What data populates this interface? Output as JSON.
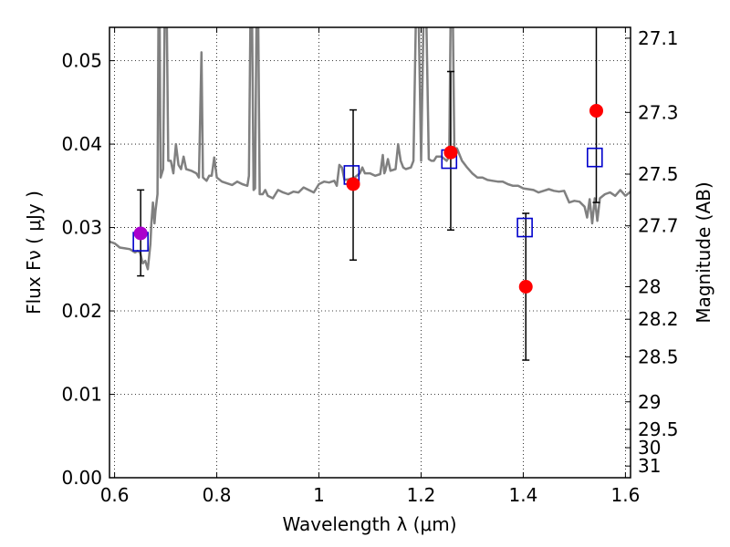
{
  "chart_data": {
    "type": "scatter",
    "title": "",
    "xlabel": "Wavelength  λ (μm)",
    "ylabel": "Flux  Fν  ( μJy )",
    "ylabel_right": "Magnitude (AB)",
    "xlim": [
      0.59,
      1.61
    ],
    "ylim": [
      0.0,
      0.054
    ],
    "grid": true,
    "x_ticks": [
      {
        "value": 0.6,
        "label": "0.6"
      },
      {
        "value": 0.8,
        "label": "0.8"
      },
      {
        "value": 1.0,
        "label": "1"
      },
      {
        "value": 1.2,
        "label": "1.2"
      },
      {
        "value": 1.4,
        "label": "1.4"
      },
      {
        "value": 1.6,
        "label": "1.6"
      }
    ],
    "y_ticks": [
      {
        "value": 0.0,
        "label": "0.00"
      },
      {
        "value": 0.01,
        "label": "0.01"
      },
      {
        "value": 0.02,
        "label": "0.02"
      },
      {
        "value": 0.03,
        "label": "0.03"
      },
      {
        "value": 0.04,
        "label": "0.04"
      },
      {
        "value": 0.05,
        "label": "0.05"
      }
    ],
    "right_ticks": [
      {
        "flux": 0.0527,
        "label": "27.1"
      },
      {
        "flux": 0.0438,
        "label": "27.3"
      },
      {
        "flux": 0.0364,
        "label": "27.5"
      },
      {
        "flux": 0.0302,
        "label": "27.7"
      },
      {
        "flux": 0.0229,
        "label": "28"
      },
      {
        "flux": 0.019,
        "label": "28.2"
      },
      {
        "flux": 0.0145,
        "label": "28.5"
      },
      {
        "flux": 0.0091,
        "label": "29"
      },
      {
        "flux": 0.0058,
        "label": "29.5"
      },
      {
        "flux": 0.0036,
        "label": "30"
      },
      {
        "flux": 0.0014,
        "label": "31"
      }
    ],
    "spectrum": {
      "color": "#808080",
      "points": [
        [
          0.59,
          0.0283
        ],
        [
          0.6,
          0.0281
        ],
        [
          0.61,
          0.0276
        ],
        [
          0.62,
          0.0275
        ],
        [
          0.63,
          0.0274
        ],
        [
          0.64,
          0.027
        ],
        [
          0.645,
          0.0272
        ],
        [
          0.65,
          0.027
        ],
        [
          0.655,
          0.0257
        ],
        [
          0.66,
          0.026
        ],
        [
          0.665,
          0.025
        ],
        [
          0.67,
          0.028
        ],
        [
          0.672,
          0.0305
        ],
        [
          0.675,
          0.033
        ],
        [
          0.678,
          0.0305
        ],
        [
          0.68,
          0.032
        ],
        [
          0.684,
          0.034
        ],
        [
          0.686,
          0.056
        ],
        [
          0.688,
          0.056
        ],
        [
          0.69,
          0.036
        ],
        [
          0.695,
          0.037
        ],
        [
          0.698,
          0.056
        ],
        [
          0.702,
          0.056
        ],
        [
          0.705,
          0.038
        ],
        [
          0.71,
          0.038
        ],
        [
          0.715,
          0.0365
        ],
        [
          0.72,
          0.04
        ],
        [
          0.725,
          0.0375
        ],
        [
          0.73,
          0.037
        ],
        [
          0.735,
          0.0385
        ],
        [
          0.74,
          0.037
        ],
        [
          0.75,
          0.0368
        ],
        [
          0.76,
          0.0365
        ],
        [
          0.765,
          0.036
        ],
        [
          0.77,
          0.051
        ],
        [
          0.773,
          0.036
        ],
        [
          0.78,
          0.0356
        ],
        [
          0.785,
          0.0362
        ],
        [
          0.79,
          0.0362
        ],
        [
          0.795,
          0.0384
        ],
        [
          0.8,
          0.036
        ],
        [
          0.81,
          0.0355
        ],
        [
          0.82,
          0.0353
        ],
        [
          0.83,
          0.0351
        ],
        [
          0.84,
          0.0355
        ],
        [
          0.85,
          0.0352
        ],
        [
          0.86,
          0.035
        ],
        [
          0.863,
          0.0362
        ],
        [
          0.866,
          0.056
        ],
        [
          0.869,
          0.056
        ],
        [
          0.872,
          0.0345
        ],
        [
          0.875,
          0.0347
        ],
        [
          0.878,
          0.056
        ],
        [
          0.881,
          0.056
        ],
        [
          0.884,
          0.034
        ],
        [
          0.89,
          0.034
        ],
        [
          0.895,
          0.0345
        ],
        [
          0.9,
          0.0338
        ],
        [
          0.91,
          0.0335
        ],
        [
          0.92,
          0.0345
        ],
        [
          0.93,
          0.0342
        ],
        [
          0.94,
          0.034
        ],
        [
          0.95,
          0.0343
        ],
        [
          0.96,
          0.0342
        ],
        [
          0.97,
          0.0348
        ],
        [
          0.98,
          0.0345
        ],
        [
          0.99,
          0.0342
        ],
        [
          1.0,
          0.0352
        ],
        [
          1.01,
          0.0355
        ],
        [
          1.02,
          0.0354
        ],
        [
          1.03,
          0.0356
        ],
        [
          1.035,
          0.035
        ],
        [
          1.04,
          0.0375
        ],
        [
          1.045,
          0.0372
        ],
        [
          1.05,
          0.0357
        ],
        [
          1.06,
          0.0358
        ],
        [
          1.07,
          0.036
        ],
        [
          1.08,
          0.0365
        ],
        [
          1.085,
          0.0372
        ],
        [
          1.09,
          0.0365
        ],
        [
          1.1,
          0.0365
        ],
        [
          1.11,
          0.0362
        ],
        [
          1.12,
          0.0364
        ],
        [
          1.125,
          0.0387
        ],
        [
          1.128,
          0.0365
        ],
        [
          1.13,
          0.0368
        ],
        [
          1.135,
          0.0382
        ],
        [
          1.14,
          0.0368
        ],
        [
          1.15,
          0.037
        ],
        [
          1.155,
          0.04
        ],
        [
          1.16,
          0.038
        ],
        [
          1.165,
          0.0372
        ],
        [
          1.17,
          0.037
        ],
        [
          1.18,
          0.0372
        ],
        [
          1.185,
          0.038
        ],
        [
          1.19,
          0.056
        ],
        [
          1.195,
          0.056
        ],
        [
          1.2,
          0.038
        ],
        [
          1.205,
          0.056
        ],
        [
          1.21,
          0.056
        ],
        [
          1.215,
          0.0382
        ],
        [
          1.22,
          0.038
        ],
        [
          1.225,
          0.038
        ],
        [
          1.23,
          0.0385
        ],
        [
          1.24,
          0.0385
        ],
        [
          1.25,
          0.038
        ],
        [
          1.255,
          0.0385
        ],
        [
          1.258,
          0.056
        ],
        [
          1.262,
          0.056
        ],
        [
          1.265,
          0.0395
        ],
        [
          1.27,
          0.0395
        ],
        [
          1.28,
          0.038
        ],
        [
          1.29,
          0.0372
        ],
        [
          1.3,
          0.0365
        ],
        [
          1.31,
          0.036
        ],
        [
          1.32,
          0.036
        ],
        [
          1.33,
          0.0357
        ],
        [
          1.34,
          0.0356
        ],
        [
          1.35,
          0.0355
        ],
        [
          1.36,
          0.0355
        ],
        [
          1.37,
          0.0352
        ],
        [
          1.38,
          0.035
        ],
        [
          1.39,
          0.035
        ],
        [
          1.4,
          0.0347
        ],
        [
          1.41,
          0.0346
        ],
        [
          1.42,
          0.0345
        ],
        [
          1.43,
          0.0342
        ],
        [
          1.44,
          0.0344
        ],
        [
          1.45,
          0.0346
        ],
        [
          1.46,
          0.0344
        ],
        [
          1.47,
          0.0343
        ],
        [
          1.48,
          0.0344
        ],
        [
          1.49,
          0.033
        ],
        [
          1.5,
          0.0332
        ],
        [
          1.51,
          0.0331
        ],
        [
          1.52,
          0.0325
        ],
        [
          1.525,
          0.0312
        ],
        [
          1.53,
          0.0334
        ],
        [
          1.535,
          0.0305
        ],
        [
          1.54,
          0.0335
        ],
        [
          1.545,
          0.0308
        ],
        [
          1.55,
          0.0335
        ],
        [
          1.56,
          0.034
        ],
        [
          1.57,
          0.0342
        ],
        [
          1.58,
          0.0338
        ],
        [
          1.59,
          0.0345
        ],
        [
          1.6,
          0.0338
        ],
        [
          1.61,
          0.0343
        ]
      ]
    },
    "series": [
      {
        "marker": "open-square",
        "color": "#0000cc",
        "points": [
          {
            "x": 0.651,
            "y": 0.0283
          },
          {
            "x": 1.064,
            "y": 0.0363
          },
          {
            "x": 1.255,
            "y": 0.0382
          },
          {
            "x": 1.403,
            "y": 0.03
          },
          {
            "x": 1.54,
            "y": 0.0384
          }
        ]
      },
      {
        "marker": "filled-circle",
        "color": "#ff0000",
        "points": [
          {
            "x": 1.067,
            "y": 0.0352,
            "err_low": 0.0261,
            "err_high": 0.0441
          },
          {
            "x": 1.258,
            "y": 0.039,
            "err_low": 0.0297,
            "err_high": 0.0487
          },
          {
            "x": 1.405,
            "y": 0.0229,
            "err_low": 0.0141,
            "err_high": 0.0317
          },
          {
            "x": 1.543,
            "y": 0.044,
            "err_low": 0.033,
            "err_high": 0.055
          }
        ]
      },
      {
        "marker": "filled-circle",
        "color": "#aa00cc",
        "points": [
          {
            "x": 0.651,
            "y": 0.0293,
            "err_low": 0.0242,
            "err_high": 0.0345
          }
        ]
      }
    ]
  }
}
